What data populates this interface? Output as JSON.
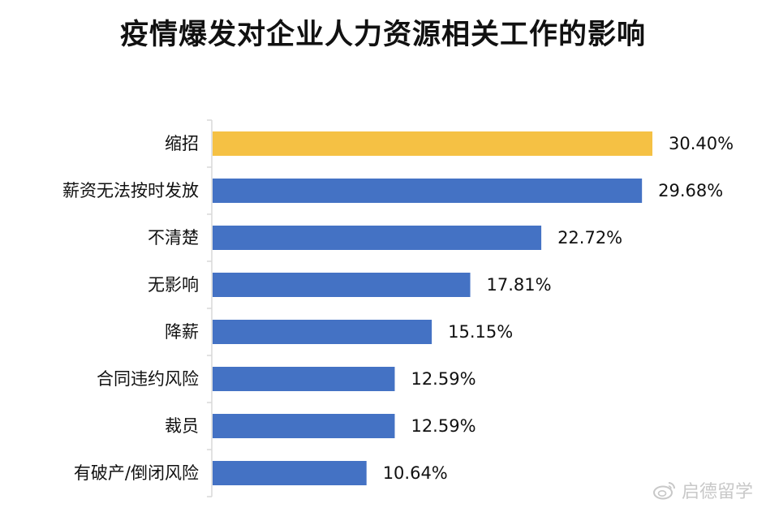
{
  "title": "疫情爆发对企业人力资源相关工作的影响",
  "watermark": "启德留学",
  "colors": {
    "highlight": "#F5C144",
    "bar": "#4472C4",
    "axis": "#d9d9d9"
  },
  "chart_data": {
    "type": "bar",
    "orientation": "horizontal",
    "title": "疫情爆发对企业人力资源相关工作的影响",
    "categories": [
      "缩招",
      "薪资无法按时发放",
      "不清楚",
      "无影响",
      "降薪",
      "合同违约风险",
      "裁员",
      "有破产/倒闭风险"
    ],
    "values": [
      30.4,
      29.68,
      22.72,
      17.81,
      15.15,
      12.59,
      12.59,
      10.64
    ],
    "value_labels": [
      "30.40%",
      "29.68%",
      "22.72%",
      "17.81%",
      "15.15%",
      "12.59%",
      "12.59%",
      "10.64%"
    ],
    "highlight_index": 0,
    "xlim": [
      0,
      30.4
    ],
    "grid": false,
    "legend": "none"
  }
}
